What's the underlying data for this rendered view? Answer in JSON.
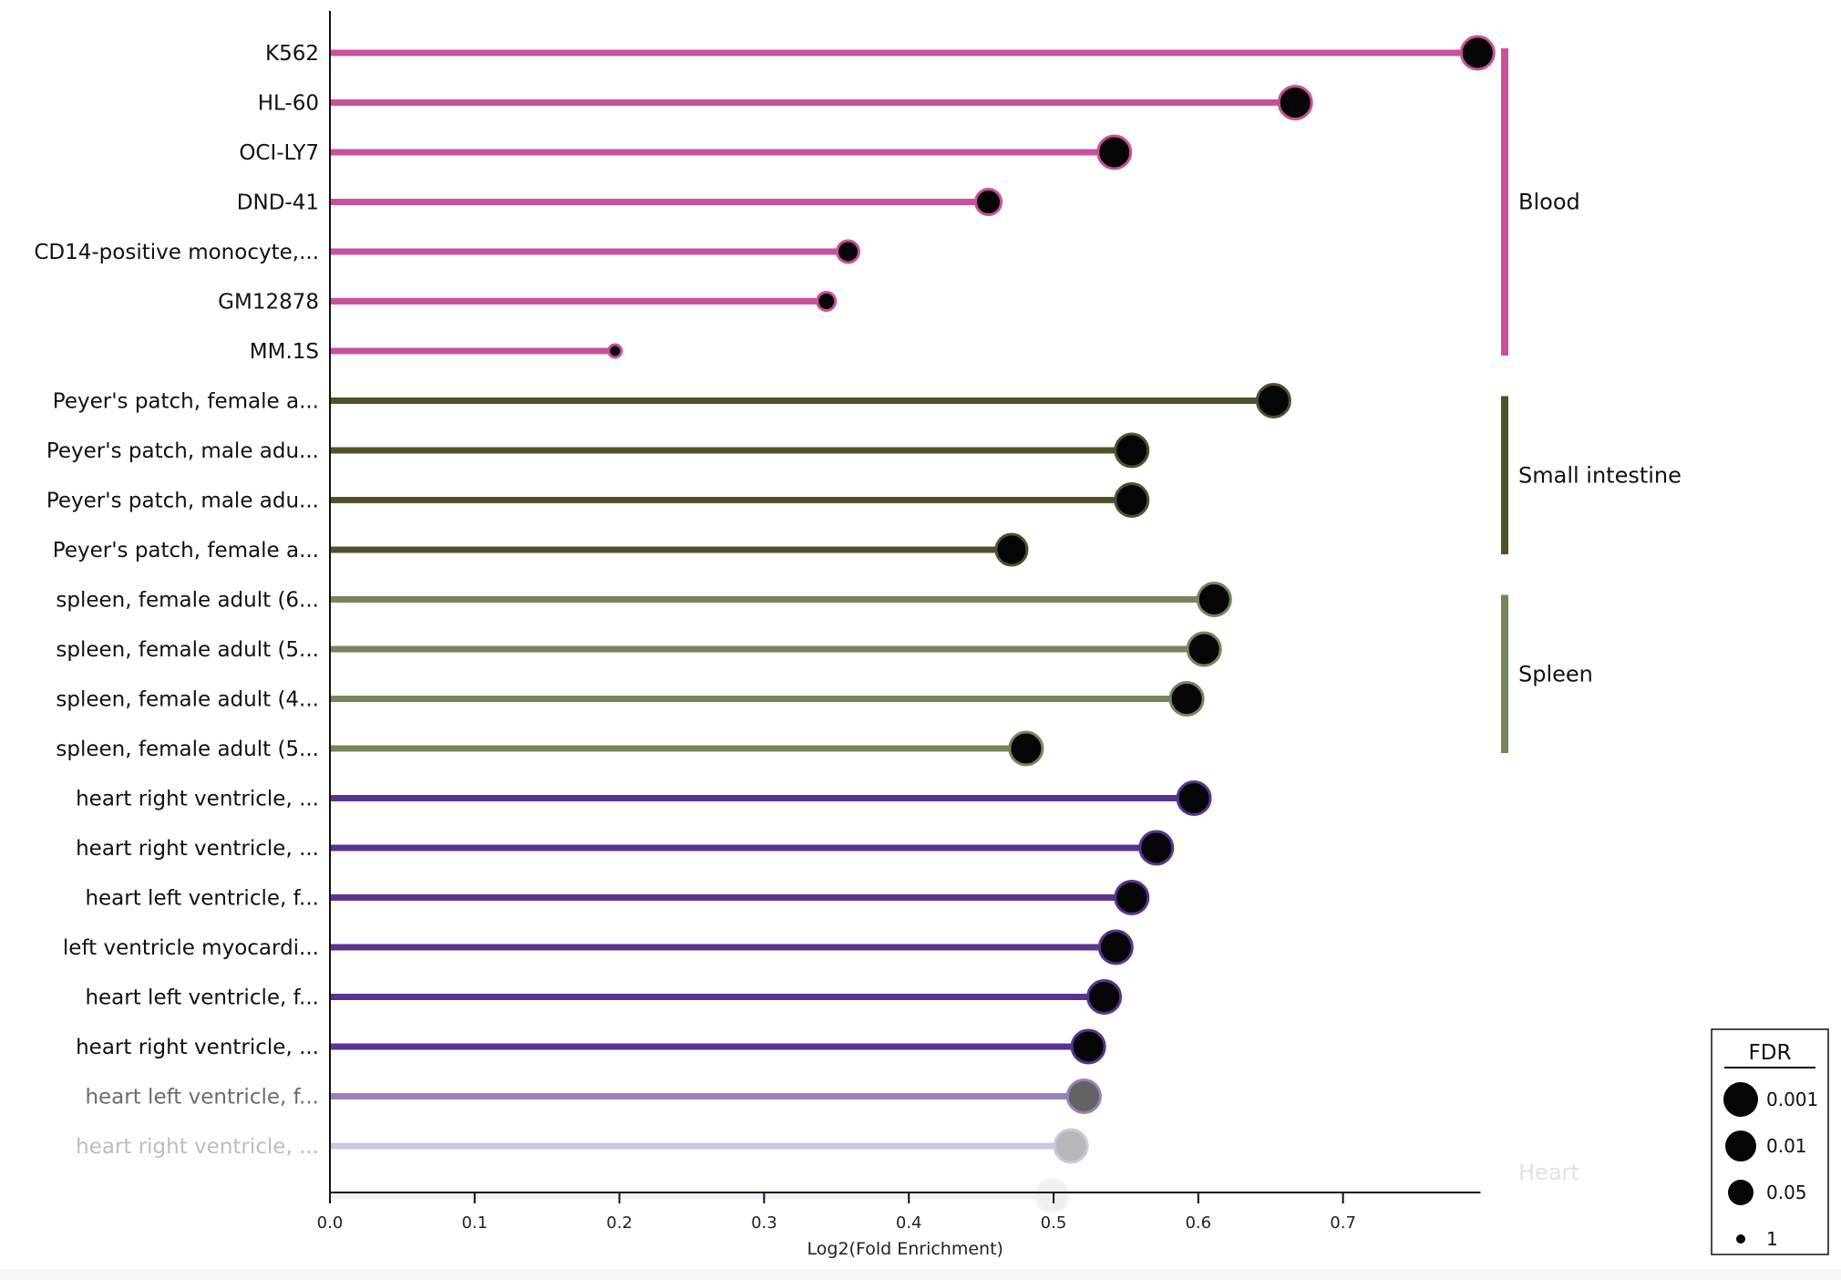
{
  "chart_data": {
    "type": "lollipop",
    "title": "",
    "xlabel": "Log2(Fold Enrichment)",
    "ylabel": "",
    "xlim": [
      0.0,
      0.795
    ],
    "xticks": [
      "0.0",
      "0.1",
      "0.2",
      "0.3",
      "0.4",
      "0.5",
      "0.6",
      "0.7"
    ],
    "groups": [
      {
        "name": "Blood",
        "color": "#c9519b",
        "first": 0,
        "last": 6
      },
      {
        "name": "Small intestine",
        "color": "#52502a",
        "first": 7,
        "last": 10
      },
      {
        "name": "Spleen",
        "color": "#77855a",
        "first": 11,
        "last": 14
      },
      {
        "name": "Heart",
        "color": "#5a3391",
        "first": 15,
        "last": 23
      }
    ],
    "points": [
      {
        "label": "K562",
        "value": 0.793,
        "fdr": 0.001,
        "group": "Blood"
      },
      {
        "label": "HL-60",
        "value": 0.667,
        "fdr": 0.001,
        "group": "Blood"
      },
      {
        "label": "OCI-LY7",
        "value": 0.542,
        "fdr": 0.001,
        "group": "Blood"
      },
      {
        "label": "DND-41",
        "value": 0.455,
        "fdr": 0.05,
        "group": "Blood"
      },
      {
        "label": "CD14-positive monocyte,...",
        "value": 0.358,
        "fdr": 0.1,
        "group": "Blood"
      },
      {
        "label": "GM12878",
        "value": 0.343,
        "fdr": 0.2,
        "group": "Blood"
      },
      {
        "label": "MM.1S",
        "value": 0.197,
        "fdr": 1,
        "group": "Blood"
      },
      {
        "label": "Peyer's patch, female a...",
        "value": 0.652,
        "fdr": 0.001,
        "group": "Small intestine"
      },
      {
        "label": "Peyer's patch, male adu...",
        "value": 0.554,
        "fdr": 0.001,
        "group": "Small intestine"
      },
      {
        "label": "Peyer's patch, male adu...",
        "value": 0.554,
        "fdr": 0.001,
        "group": "Small intestine"
      },
      {
        "label": "Peyer's patch, female a...",
        "value": 0.471,
        "fdr": 0.01,
        "group": "Small intestine"
      },
      {
        "label": "spleen, female adult (6...",
        "value": 0.611,
        "fdr": 0.001,
        "group": "Spleen"
      },
      {
        "label": "spleen, female adult (5...",
        "value": 0.604,
        "fdr": 0.001,
        "group": "Spleen"
      },
      {
        "label": "spleen, female adult (4...",
        "value": 0.592,
        "fdr": 0.001,
        "group": "Spleen"
      },
      {
        "label": "spleen, female adult (5...",
        "value": 0.481,
        "fdr": 0.001,
        "group": "Spleen"
      },
      {
        "label": "heart right ventricle, ...",
        "value": 0.597,
        "fdr": 0.001,
        "group": "Heart"
      },
      {
        "label": "heart right ventricle, ...",
        "value": 0.571,
        "fdr": 0.001,
        "group": "Heart"
      },
      {
        "label": "heart left ventricle, f...",
        "value": 0.554,
        "fdr": 0.001,
        "group": "Heart"
      },
      {
        "label": "left ventricle myocardi...",
        "value": 0.543,
        "fdr": 0.001,
        "group": "Heart"
      },
      {
        "label": "heart left ventricle, f...",
        "value": 0.535,
        "fdr": 0.001,
        "group": "Heart"
      },
      {
        "label": "heart right ventricle, ...",
        "value": 0.524,
        "fdr": 0.001,
        "group": "Heart"
      },
      {
        "label": "heart left ventricle, f...",
        "value": 0.521,
        "fdr": 0.001,
        "group": "Heart"
      },
      {
        "label": "heart right ventricle, ...",
        "value": 0.512,
        "fdr": 0.001,
        "group": "Heart"
      },
      {
        "label": "",
        "value": 0.499,
        "fdr": 0.001,
        "group": "Heart"
      }
    ],
    "fade": {
      "from_index": 21,
      "opacities": [
        0.62,
        0.28,
        0.06
      ]
    },
    "legend": {
      "title": "FDR",
      "position": "bottom-right",
      "entries": [
        {
          "label": "0.001",
          "fdr": 0.001
        },
        {
          "label": "0.01",
          "fdr": 0.01
        },
        {
          "label": "0.05",
          "fdr": 0.05
        },
        {
          "label": "1",
          "fdr": 1
        }
      ]
    },
    "grid": false
  }
}
